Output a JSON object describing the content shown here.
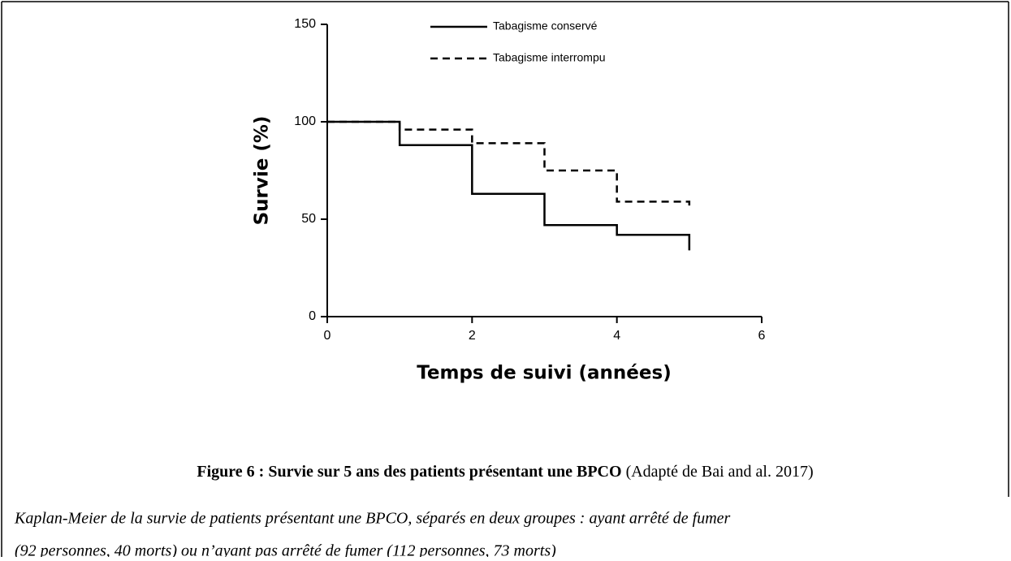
{
  "chart_data": {
    "type": "step",
    "x_label": "Temps de suivi (années)",
    "y_label": "Survie (%)",
    "xlim": [
      0,
      6
    ],
    "xticks": [
      0,
      2,
      4,
      6
    ],
    "ylim": [
      0,
      150
    ],
    "yticks": [
      0,
      50,
      100,
      150
    ],
    "series": [
      {
        "name": "Tabagisme conservé",
        "color": "#000000",
        "dash": "solid",
        "x": [
          0,
          1,
          2,
          3,
          4,
          5
        ],
        "values": [
          100,
          88,
          63,
          47,
          42,
          34
        ]
      },
      {
        "name": "Tabagisme interrompu",
        "color": "#000000",
        "dash": "dashed",
        "x": [
          0,
          1,
          2,
          3,
          4,
          5
        ],
        "values": [
          100,
          96,
          89,
          75,
          59,
          56
        ]
      }
    ]
  },
  "figure_caption": {
    "label": "Figure 6 : Survie sur 5 ans des patients présentant une BPCO",
    "source": "(Adapté de Bai and al. 2017)"
  },
  "description": [
    "Kaplan-Meier de la survie de patients présentant une BPCO, séparés en deux groupes : ayant arrêté de fumer",
    "(92 personnes, 40 morts) ou n’ayant pas arrêté de fumer (112 personnes, 73 morts)"
  ]
}
